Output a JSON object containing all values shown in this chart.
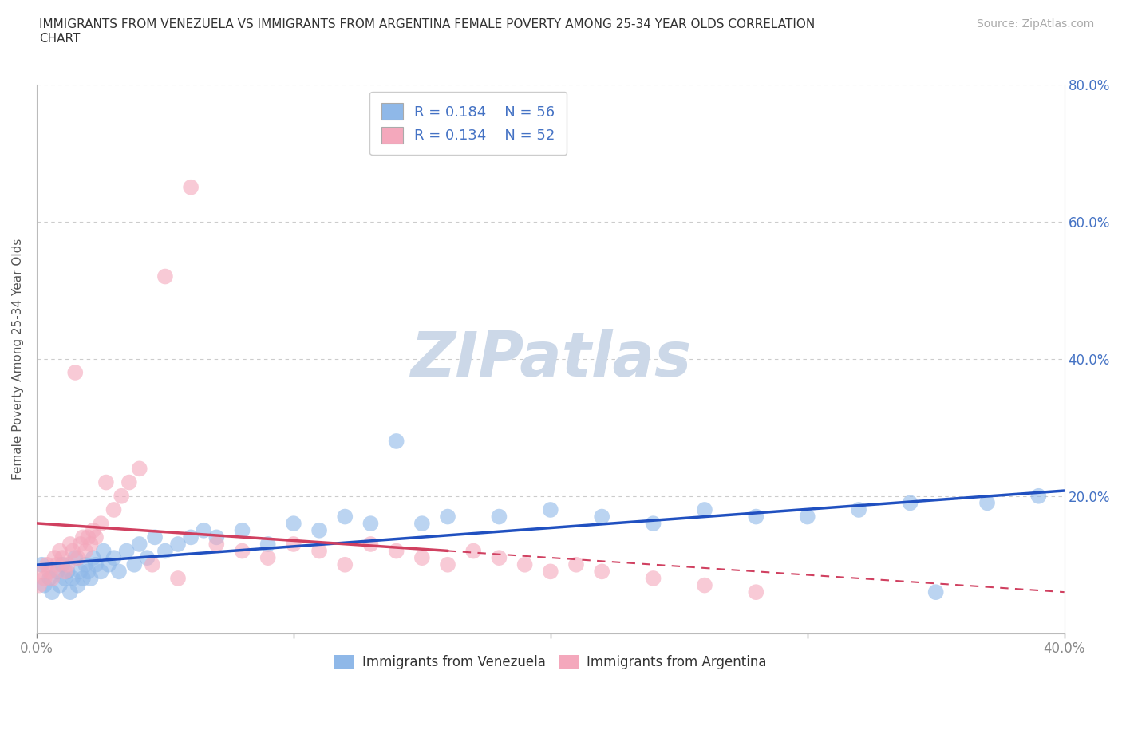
{
  "title": "IMMIGRANTS FROM VENEZUELA VS IMMIGRANTS FROM ARGENTINA FEMALE POVERTY AMONG 25-34 YEAR OLDS CORRELATION\nCHART",
  "source_text": "Source: ZipAtlas.com",
  "ylabel": "Female Poverty Among 25-34 Year Olds",
  "xlim": [
    0.0,
    0.4
  ],
  "ylim": [
    0.0,
    0.8
  ],
  "xticks": [
    0.0,
    0.1,
    0.2,
    0.3,
    0.4
  ],
  "xticklabels": [
    "0.0%",
    "",
    "",
    "",
    "40.0%"
  ],
  "yticks": [
    0.0,
    0.2,
    0.4,
    0.6,
    0.8
  ],
  "yticklabels": [
    "",
    "20.0%",
    "40.0%",
    "60.0%",
    "80.0%"
  ],
  "grid_color": "#cccccc",
  "background_color": "#ffffff",
  "watermark_text": "ZIPatlas",
  "watermark_color": "#ccd8e8",
  "legend_R1": "R = 0.184",
  "legend_N1": "N = 56",
  "legend_R2": "R = 0.134",
  "legend_N2": "N = 52",
  "color_venezuela": "#8fb8e8",
  "color_argentina": "#f4a8bc",
  "label_venezuela": "Immigrants from Venezuela",
  "label_argentina": "Immigrants from Argentina",
  "trend_color_venezuela": "#2050c0",
  "trend_color_argentina": "#d04060",
  "venezuela_x": [
    0.002,
    0.003,
    0.005,
    0.006,
    0.008,
    0.009,
    0.01,
    0.011,
    0.012,
    0.013,
    0.014,
    0.015,
    0.016,
    0.017,
    0.018,
    0.019,
    0.02,
    0.021,
    0.022,
    0.023,
    0.025,
    0.026,
    0.028,
    0.03,
    0.032,
    0.035,
    0.038,
    0.04,
    0.043,
    0.046,
    0.05,
    0.055,
    0.06,
    0.065,
    0.07,
    0.08,
    0.09,
    0.1,
    0.11,
    0.12,
    0.13,
    0.14,
    0.15,
    0.16,
    0.18,
    0.2,
    0.22,
    0.24,
    0.26,
    0.28,
    0.3,
    0.32,
    0.34,
    0.35,
    0.37,
    0.39
  ],
  "venezuela_y": [
    0.1,
    0.07,
    0.08,
    0.06,
    0.09,
    0.07,
    0.1,
    0.08,
    0.09,
    0.06,
    0.08,
    0.11,
    0.07,
    0.09,
    0.08,
    0.1,
    0.09,
    0.08,
    0.11,
    0.1,
    0.09,
    0.12,
    0.1,
    0.11,
    0.09,
    0.12,
    0.1,
    0.13,
    0.11,
    0.14,
    0.12,
    0.13,
    0.14,
    0.15,
    0.14,
    0.15,
    0.13,
    0.16,
    0.15,
    0.17,
    0.16,
    0.28,
    0.16,
    0.17,
    0.17,
    0.18,
    0.17,
    0.16,
    0.18,
    0.17,
    0.17,
    0.18,
    0.19,
    0.06,
    0.19,
    0.2
  ],
  "argentina_x": [
    0.001,
    0.002,
    0.003,
    0.004,
    0.005,
    0.006,
    0.007,
    0.008,
    0.009,
    0.01,
    0.011,
    0.012,
    0.013,
    0.014,
    0.015,
    0.016,
    0.017,
    0.018,
    0.019,
    0.02,
    0.021,
    0.022,
    0.023,
    0.025,
    0.027,
    0.03,
    0.033,
    0.036,
    0.04,
    0.045,
    0.05,
    0.055,
    0.06,
    0.07,
    0.08,
    0.09,
    0.1,
    0.11,
    0.12,
    0.13,
    0.14,
    0.15,
    0.16,
    0.17,
    0.18,
    0.19,
    0.2,
    0.21,
    0.22,
    0.24,
    0.26,
    0.28
  ],
  "argentina_y": [
    0.07,
    0.09,
    0.08,
    0.1,
    0.09,
    0.08,
    0.11,
    0.1,
    0.12,
    0.11,
    0.09,
    0.1,
    0.13,
    0.12,
    0.38,
    0.11,
    0.13,
    0.14,
    0.12,
    0.14,
    0.13,
    0.15,
    0.14,
    0.16,
    0.22,
    0.18,
    0.2,
    0.22,
    0.24,
    0.1,
    0.52,
    0.08,
    0.65,
    0.13,
    0.12,
    0.11,
    0.13,
    0.12,
    0.1,
    0.13,
    0.12,
    0.11,
    0.1,
    0.12,
    0.11,
    0.1,
    0.09,
    0.1,
    0.09,
    0.08,
    0.07,
    0.06
  ]
}
